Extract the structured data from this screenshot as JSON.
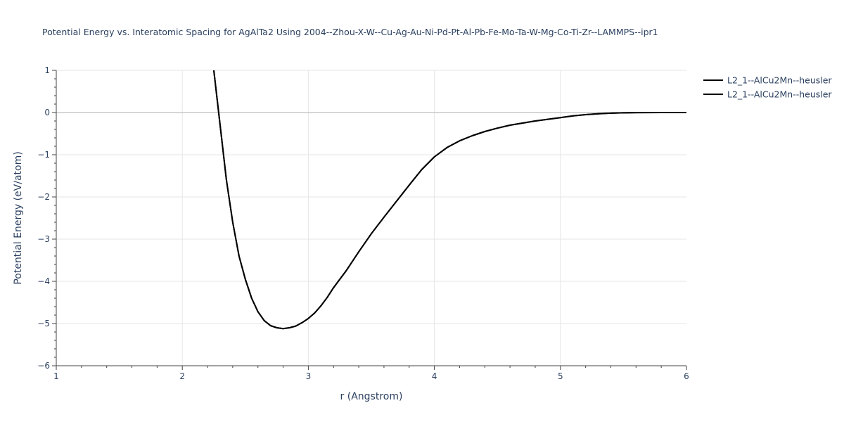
{
  "chart_data": {
    "type": "line",
    "title": "Potential Energy vs. Interatomic Spacing for AgAlTa2 Using 2004--Zhou-X-W--Cu-Ag-Au-Ni-Pd-Pt-Al-Pb-Fe-Mo-Ta-W-Mg-Co-Ti-Zr--LAMMPS--ipr1",
    "xlabel": "r (Angstrom)",
    "ylabel": "Potential Energy (eV/atom)",
    "xlim": [
      1,
      6
    ],
    "ylim": [
      -6,
      1
    ],
    "x_ticks": [
      "1",
      "2",
      "3",
      "4",
      "5",
      "6"
    ],
    "y_ticks": [
      "1",
      "0",
      "−1",
      "−2",
      "−3",
      "−4",
      "−5",
      "−6"
    ],
    "grid": true,
    "legend_position": "top-right",
    "series": [
      {
        "name": "L2_1--AlCu2Mn--heusler",
        "color": "#000000",
        "x": [
          2.25,
          2.3,
          2.35,
          2.4,
          2.45,
          2.5,
          2.55,
          2.6,
          2.65,
          2.7,
          2.75,
          2.8,
          2.85,
          2.9,
          2.95,
          3.0,
          3.05,
          3.1,
          3.15,
          3.2,
          3.3,
          3.4,
          3.5,
          3.6,
          3.7,
          3.8,
          3.9,
          4.0,
          4.1,
          4.2,
          4.3,
          4.4,
          4.5,
          4.6,
          4.7,
          4.8,
          4.9,
          5.0,
          5.1,
          5.2,
          5.3,
          5.4,
          5.5,
          5.6,
          5.8,
          6.0
        ],
        "y": [
          1.0,
          -0.3,
          -1.6,
          -2.6,
          -3.4,
          -3.95,
          -4.4,
          -4.72,
          -4.93,
          -5.05,
          -5.1,
          -5.12,
          -5.1,
          -5.06,
          -4.98,
          -4.88,
          -4.75,
          -4.58,
          -4.38,
          -4.15,
          -3.75,
          -3.3,
          -2.87,
          -2.48,
          -2.1,
          -1.72,
          -1.35,
          -1.05,
          -0.83,
          -0.67,
          -0.55,
          -0.45,
          -0.37,
          -0.3,
          -0.25,
          -0.2,
          -0.16,
          -0.12,
          -0.08,
          -0.05,
          -0.03,
          -0.015,
          -0.007,
          -0.003,
          0.0,
          0.0
        ]
      },
      {
        "name": "L2_1--AlCu2Mn--heusler",
        "color": "#000000",
        "x": [
          2.25,
          2.3,
          2.35,
          2.4,
          2.45,
          2.5,
          2.55,
          2.6,
          2.65,
          2.7,
          2.75,
          2.8,
          2.85,
          2.9,
          2.95,
          3.0,
          3.05,
          3.1,
          3.15,
          3.2,
          3.3,
          3.4,
          3.5,
          3.6,
          3.7,
          3.8,
          3.9,
          4.0,
          4.1,
          4.2,
          4.3,
          4.4,
          4.5,
          4.6,
          4.7,
          4.8,
          4.9,
          5.0,
          5.1,
          5.2,
          5.3,
          5.4,
          5.5,
          5.6,
          5.8,
          6.0
        ],
        "y": [
          1.0,
          -0.3,
          -1.6,
          -2.6,
          -3.4,
          -3.95,
          -4.4,
          -4.72,
          -4.93,
          -5.05,
          -5.1,
          -5.12,
          -5.1,
          -5.06,
          -4.98,
          -4.88,
          -4.75,
          -4.58,
          -4.38,
          -4.15,
          -3.75,
          -3.3,
          -2.87,
          -2.48,
          -2.1,
          -1.72,
          -1.35,
          -1.05,
          -0.83,
          -0.67,
          -0.55,
          -0.45,
          -0.37,
          -0.3,
          -0.25,
          -0.2,
          -0.16,
          -0.12,
          -0.08,
          -0.05,
          -0.03,
          -0.015,
          -0.007,
          -0.003,
          0.0,
          0.0
        ]
      }
    ]
  }
}
